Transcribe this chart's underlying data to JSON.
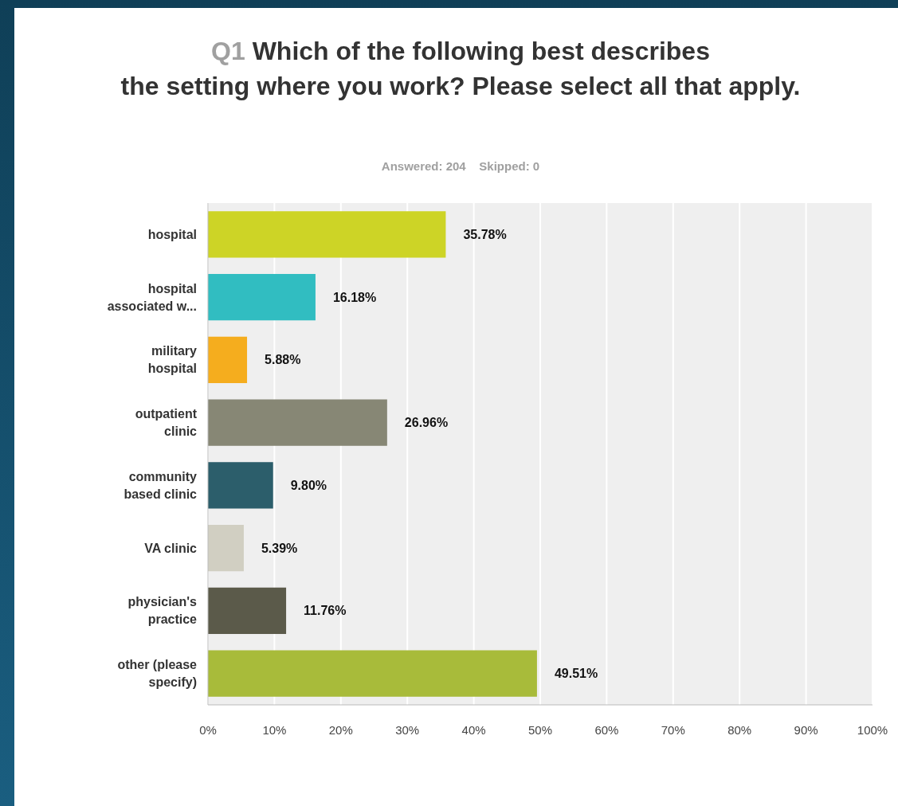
{
  "chart_data": {
    "type": "bar",
    "orientation": "horizontal",
    "title": "Q1 Which of the following best describes the setting where you work? Please select all that apply.",
    "subtitle": "Answered: 204    Skipped: 0",
    "categories": [
      "hospital",
      "hospital associated w...",
      "military hospital",
      "outpatient clinic",
      "community based clinic",
      "VA clinic",
      "physician's practice",
      "other (please specify)"
    ],
    "values": [
      35.78,
      16.18,
      5.88,
      26.96,
      9.8,
      5.39,
      11.76,
      49.51
    ],
    "value_labels": [
      "35.78%",
      "16.18%",
      "5.88%",
      "26.96%",
      "9.80%",
      "5.39%",
      "11.76%",
      "49.51%"
    ],
    "colors": [
      "#cdd426",
      "#31bdc1",
      "#f5ad1e",
      "#878775",
      "#2c5e6b",
      "#d1cfc2",
      "#5b5a4a",
      "#a8bb3a"
    ],
    "xlim": [
      0,
      100
    ],
    "xticks": [
      {
        "value": 0,
        "label": "0%"
      },
      {
        "value": 10,
        "label": "10%"
      },
      {
        "value": 20,
        "label": "20%"
      },
      {
        "value": 30,
        "label": "30%"
      },
      {
        "value": 40,
        "label": "40%"
      },
      {
        "value": 50,
        "label": "50%"
      },
      {
        "value": 60,
        "label": "60%"
      },
      {
        "value": 70,
        "label": "70%"
      },
      {
        "value": 80,
        "label": "80%"
      },
      {
        "value": 90,
        "label": "90%"
      },
      {
        "value": 100,
        "label": "100%"
      }
    ],
    "grid": "x"
  }
}
